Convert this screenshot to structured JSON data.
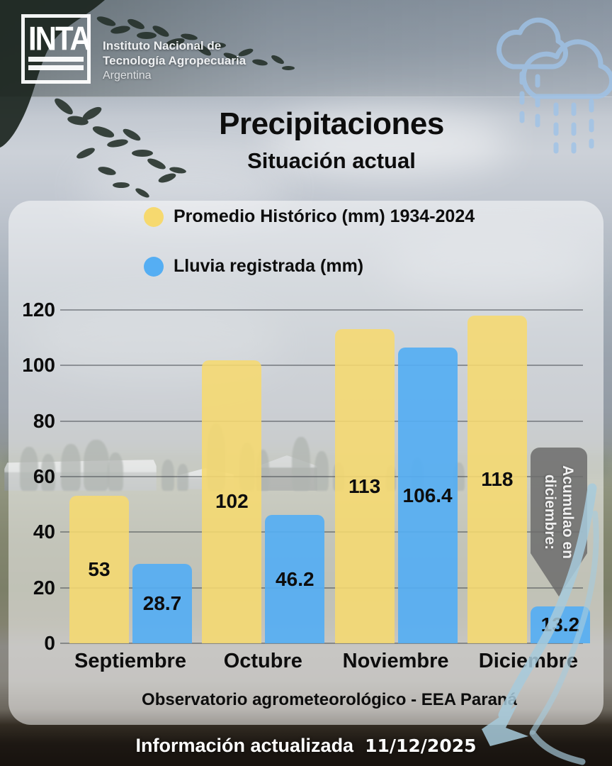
{
  "header": {
    "logo_acronym": "INTA",
    "org_line1": "Instituto Nacional de",
    "org_line2": "Tecnología Agropecuaria",
    "org_line3": "Argentina"
  },
  "title": "Precipitaciones",
  "subtitle": "Situación actual",
  "legend": [
    {
      "label": "Promedio Histórico (mm) 1934-2024",
      "color": "#f6d96f"
    },
    {
      "label": "Lluvia registrada (mm)",
      "color": "#55aef3"
    }
  ],
  "chart_data": {
    "type": "bar",
    "categories": [
      "Septiembre",
      "Octubre",
      "Noviembre",
      "Diciembre"
    ],
    "series": [
      {
        "name": "Promedio Histórico (mm) 1934-2024",
        "color": "#f6d96f",
        "values": [
          53,
          102,
          113,
          118
        ]
      },
      {
        "name": "Lluvia registrada (mm)",
        "color": "#55aef3",
        "values": [
          28.7,
          46.2,
          106.4,
          13.2
        ]
      }
    ],
    "xlabel": "",
    "ylabel": "",
    "ylim": [
      0,
      120
    ],
    "ytick_step": 20,
    "grid": true,
    "legend_position": "top-left"
  },
  "annotation": {
    "line1": "Acumulao en",
    "line2": "diciembre:",
    "color": "#6c6c6c"
  },
  "footer": {
    "source": "Observatorio agrometeorológico - EEA Paraná",
    "updated_label": "Información actualizada",
    "updated_date": "11/12/2025"
  },
  "icons": {
    "top_right": "rain-clouds-icon",
    "bottom_right": "brush-arrow-graphic"
  }
}
